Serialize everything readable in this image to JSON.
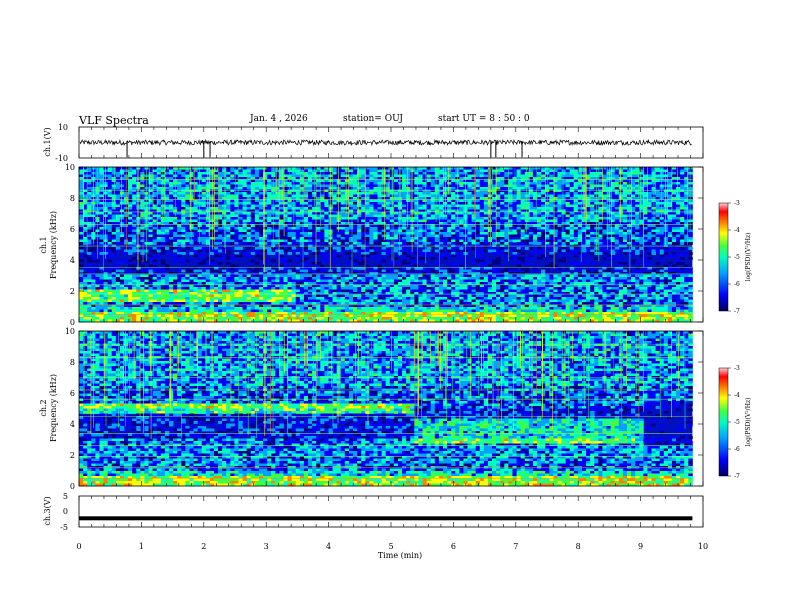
{
  "header": {
    "title": "VLF Spectra",
    "date": "Jan. 4 , 2026",
    "station": "station= OUJ",
    "start": "start  UT =   8 : 50 : 0"
  },
  "chart_data": [
    {
      "type": "line",
      "id": "ch1-waveform",
      "ylabel": "ch.1(V)",
      "ylim": [
        -10,
        10
      ],
      "ytick_labels": [
        "10",
        "-10"
      ],
      "baseline": 0,
      "spikes": [
        0.77,
        2.0,
        2.1,
        6.6,
        6.68,
        7.1
      ]
    },
    {
      "type": "heatmap",
      "id": "ch1-spectrogram",
      "ylabel": "ch.1\nFrequency (kHz)",
      "ylabel_line1": "ch.1",
      "ylabel_line2": "Frequency (kHz)",
      "ylim": [
        0,
        10
      ],
      "yticks": [
        0,
        2,
        4,
        6,
        8,
        10
      ],
      "ytick_labels": [
        "0",
        "2",
        "4",
        "6",
        "8",
        "10"
      ],
      "colorbar": {
        "label": "log(PSD)(V²/Hz)",
        "range": [
          -7,
          -3
        ],
        "tick_labels": [
          "-3",
          "-4",
          "-5",
          "-6",
          "-7"
        ]
      }
    },
    {
      "type": "heatmap",
      "id": "ch2-spectrogram",
      "ylabel": "ch.2\nFrequency (kHz)",
      "ylabel_line1": "ch.2",
      "ylabel_line2": "Frequency (kHz)",
      "ylim": [
        0,
        10
      ],
      "yticks": [
        0,
        2,
        4,
        6,
        8,
        10
      ],
      "ytick_labels": [
        "0",
        "2",
        "4",
        "6",
        "8",
        "10"
      ],
      "colorbar": {
        "label": "log(PSD)(V²/Hz)",
        "range": [
          -7,
          -3
        ],
        "tick_labels": [
          "-3",
          "-4",
          "-5",
          "-6",
          "-7"
        ]
      }
    },
    {
      "type": "line",
      "id": "ch3-waveform",
      "ylabel": "ch.3(V)",
      "ylim": [
        -5,
        5
      ],
      "ytick_labels": [
        "5",
        "0",
        "-5"
      ],
      "level": -2.2
    }
  ],
  "xaxis": {
    "label": "Time (min)",
    "xlim": [
      0,
      10
    ],
    "ticks": [
      0,
      1,
      2,
      3,
      4,
      5,
      6,
      7,
      8,
      9,
      10
    ],
    "tick_labels": [
      "0",
      "1",
      "2",
      "3",
      "4",
      "5",
      "6",
      "7",
      "8",
      "9",
      "10"
    ],
    "data_end": 9.83
  },
  "colors": {
    "scale": [
      "#000080",
      "#0000ff",
      "#00a0ff",
      "#00ffc0",
      "#40ff40",
      "#ffff00",
      "#ff8000",
      "#ff0000",
      "#ffc0c0"
    ]
  }
}
